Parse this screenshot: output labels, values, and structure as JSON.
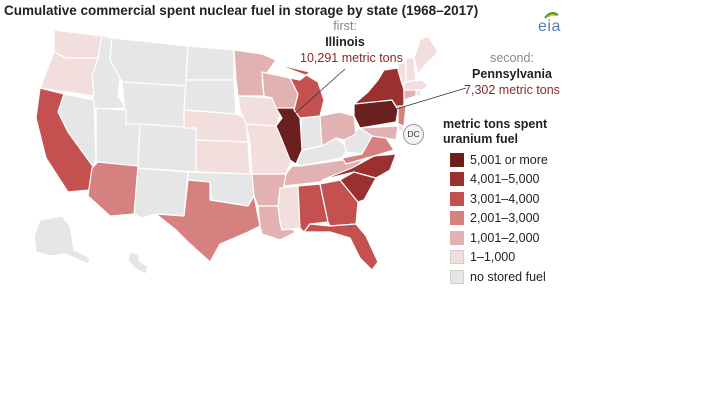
{
  "title": "Cumulative commercial spent nuclear fuel in storage by state (1968–2017)",
  "logo_text": "eia",
  "callouts": {
    "first": {
      "rank": "first:",
      "state": "Illinois",
      "value": "10,291 metric tons"
    },
    "second": {
      "rank": "second:",
      "state": "Pennsylvania",
      "value": "7,302 metric tons"
    }
  },
  "dc_label": "DC",
  "legend": {
    "title": "metric tons spent uranium fuel",
    "items": [
      {
        "label": "5,001 or more",
        "color": "#6b1f1f"
      },
      {
        "label": "4,001–5,000",
        "color": "#9a3030"
      },
      {
        "label": "3,001–4,000",
        "color": "#c55050"
      },
      {
        "label": "2,001–3,000",
        "color": "#d68080"
      },
      {
        "label": "1,001–2,000",
        "color": "#e2b2b2"
      },
      {
        "label": "1–1,000",
        "color": "#f3dede"
      },
      {
        "label": "no stored fuel",
        "color": "#e6e6e6"
      }
    ]
  },
  "states": [
    {
      "id": "WA",
      "class": "1–1,000",
      "color": "#f3dede"
    },
    {
      "id": "OR",
      "class": "1–1,000",
      "color": "#f3dede"
    },
    {
      "id": "CA",
      "class": "3,001–4,000",
      "color": "#c55050"
    },
    {
      "id": "AZ",
      "class": "2,001–3,000",
      "color": "#d68080"
    },
    {
      "id": "TX",
      "class": "2,001–3,000",
      "color": "#d68080"
    },
    {
      "id": "NE",
      "class": "1–1,000",
      "color": "#f3dede"
    },
    {
      "id": "KS",
      "class": "1–1,000",
      "color": "#f3dede"
    },
    {
      "id": "MN",
      "class": "1,001–2,000",
      "color": "#e2b2b2"
    },
    {
      "id": "IA",
      "class": "1–1,000",
      "color": "#f3dede"
    },
    {
      "id": "MO",
      "class": "1–1,000",
      "color": "#f3dede"
    },
    {
      "id": "AR",
      "class": "1,001–2,000",
      "color": "#e2b2b2"
    },
    {
      "id": "LA",
      "class": "1,001–2,000",
      "color": "#e2b2b2"
    },
    {
      "id": "WI",
      "class": "1,001–2,000",
      "color": "#e2b2b2"
    },
    {
      "id": "IL",
      "class": "5,001 or more",
      "color": "#6b1f1f"
    },
    {
      "id": "MI",
      "class": "3,001–4,000",
      "color": "#c55050"
    },
    {
      "id": "OH",
      "class": "1,001–2,000",
      "color": "#e2b2b2"
    },
    {
      "id": "MS",
      "class": "1–1,000",
      "color": "#f3dede"
    },
    {
      "id": "AL",
      "class": "3,001–4,000",
      "color": "#c55050"
    },
    {
      "id": "GA",
      "class": "3,001–4,000",
      "color": "#c55050"
    },
    {
      "id": "FL",
      "class": "3,001–4,000",
      "color": "#c55050"
    },
    {
      "id": "TN",
      "class": "1,001–2,000",
      "color": "#e2b2b2"
    },
    {
      "id": "SC",
      "class": "4,001–5,000",
      "color": "#9a3030"
    },
    {
      "id": "NC",
      "class": "4,001–5,000",
      "color": "#9a3030"
    },
    {
      "id": "VA",
      "class": "2,001–3,000",
      "color": "#d68080"
    },
    {
      "id": "MD",
      "class": "1,001–2,000",
      "color": "#e2b2b2"
    },
    {
      "id": "PA",
      "class": "5,001 or more",
      "color": "#6b1f1f"
    },
    {
      "id": "NY",
      "class": "4,001–5,000",
      "color": "#9a3030"
    },
    {
      "id": "NJ",
      "class": "2,001–3,000",
      "color": "#d68080"
    },
    {
      "id": "CT",
      "class": "1,001–2,000",
      "color": "#e2b2b2"
    },
    {
      "id": "MA",
      "class": "1–1,000",
      "color": "#f3dede"
    },
    {
      "id": "VT",
      "class": "1–1,000",
      "color": "#f3dede"
    },
    {
      "id": "NH",
      "class": "1–1,000",
      "color": "#f3dede"
    },
    {
      "id": "ME",
      "class": "1–1,000",
      "color": "#f3dede"
    }
  ]
}
